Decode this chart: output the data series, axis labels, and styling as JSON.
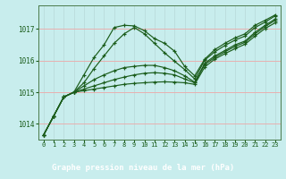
{
  "title": "Graphe pression niveau de la mer (hPa)",
  "bg_color": "#c8eded",
  "plot_bg_color": "#c8eded",
  "bottom_bar_color": "#2d6e2d",
  "grid_h_color": "#e8b0b0",
  "grid_v_color": "#b8d8d8",
  "line_color": "#1a5c1a",
  "xlim": [
    -0.5,
    23.5
  ],
  "ylim": [
    1013.5,
    1017.75
  ],
  "yticks": [
    1014,
    1015,
    1016,
    1017
  ],
  "xticks": [
    0,
    1,
    2,
    3,
    4,
    5,
    6,
    7,
    8,
    9,
    10,
    11,
    12,
    13,
    14,
    15,
    16,
    17,
    18,
    19,
    20,
    21,
    22,
    23
  ],
  "series": [
    [
      1013.65,
      1014.25,
      1014.85,
      1015.0,
      1015.05,
      1015.1,
      1015.15,
      1015.2,
      1015.25,
      1015.28,
      1015.3,
      1015.32,
      1015.33,
      1015.32,
      1015.3,
      1015.25,
      1015.8,
      1016.05,
      1016.22,
      1016.38,
      1016.52,
      1016.78,
      1017.02,
      1017.2
    ],
    [
      1013.65,
      1014.25,
      1014.85,
      1015.0,
      1015.1,
      1015.2,
      1015.3,
      1015.4,
      1015.48,
      1015.55,
      1015.6,
      1015.62,
      1015.6,
      1015.55,
      1015.42,
      1015.3,
      1015.88,
      1016.1,
      1016.28,
      1016.45,
      1016.58,
      1016.85,
      1017.08,
      1017.28
    ],
    [
      1013.65,
      1014.25,
      1014.85,
      1015.0,
      1015.2,
      1015.4,
      1015.55,
      1015.68,
      1015.78,
      1015.82,
      1015.85,
      1015.85,
      1015.78,
      1015.68,
      1015.52,
      1015.32,
      1015.92,
      1016.15,
      1016.32,
      1016.5,
      1016.62,
      1016.9,
      1017.12,
      1017.32
    ],
    [
      1013.65,
      1014.25,
      1014.85,
      1015.0,
      1015.3,
      1015.75,
      1016.15,
      1016.55,
      1016.85,
      1017.05,
      1016.85,
      1016.55,
      1016.25,
      1015.98,
      1015.72,
      1015.42,
      1016.02,
      1016.28,
      1016.48,
      1016.65,
      1016.78,
      1017.05,
      1017.22,
      1017.42
    ],
    [
      1013.65,
      1014.25,
      1014.85,
      1015.0,
      1015.55,
      1016.1,
      1016.5,
      1017.05,
      1017.12,
      1017.1,
      1016.95,
      1016.7,
      1016.55,
      1016.3,
      1015.82,
      1015.52,
      1016.05,
      1016.35,
      1016.55,
      1016.72,
      1016.85,
      1017.12,
      1017.28,
      1017.45
    ]
  ]
}
